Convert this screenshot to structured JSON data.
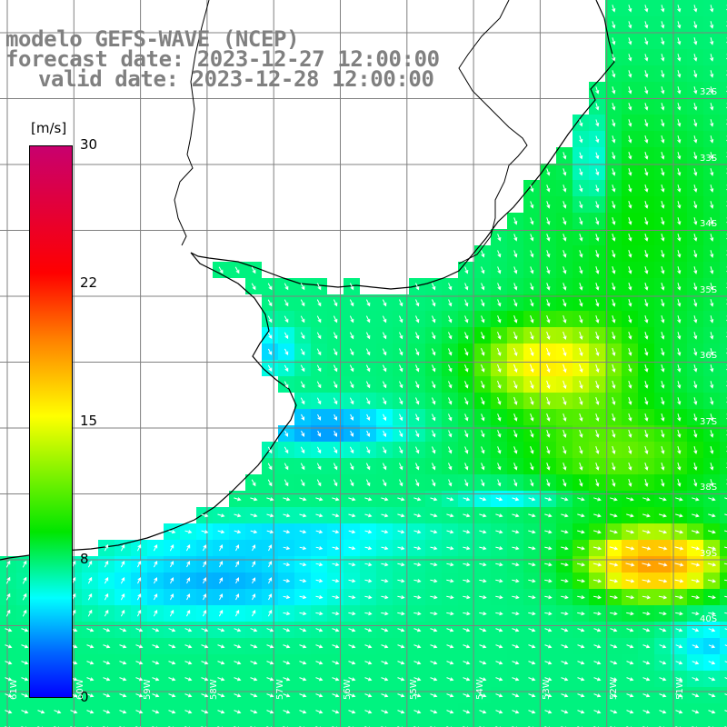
{
  "title": {
    "line1": "modelo GEFS-WAVE (NCEP)",
    "line2": "forecast date: 2023-12-27 12:00:00",
    "line3": "valid date: 2023-12-28 12:00:00"
  },
  "colorbar": {
    "unit": "[m/s]",
    "min": 0,
    "max": 30,
    "ticks": [
      "30",
      "22",
      "15",
      "8",
      "0"
    ],
    "tick_values": [
      30,
      22,
      15,
      8,
      0
    ]
  },
  "colors": {
    "land": "#ffffff",
    "grid": "#808080",
    "coast": "#000000",
    "arrows": "#ffffff"
  },
  "map": {
    "variable": "wind speed and direction",
    "lon_labels": [
      "61W",
      "60W",
      "59W",
      "58W",
      "57W",
      "56W",
      "55W",
      "54W",
      "53W",
      "52W",
      "51W"
    ],
    "lat_labels": [
      "32S",
      "33S",
      "34S",
      "35S",
      "36S",
      "37S",
      "38S",
      "39S",
      "40S"
    ]
  }
}
